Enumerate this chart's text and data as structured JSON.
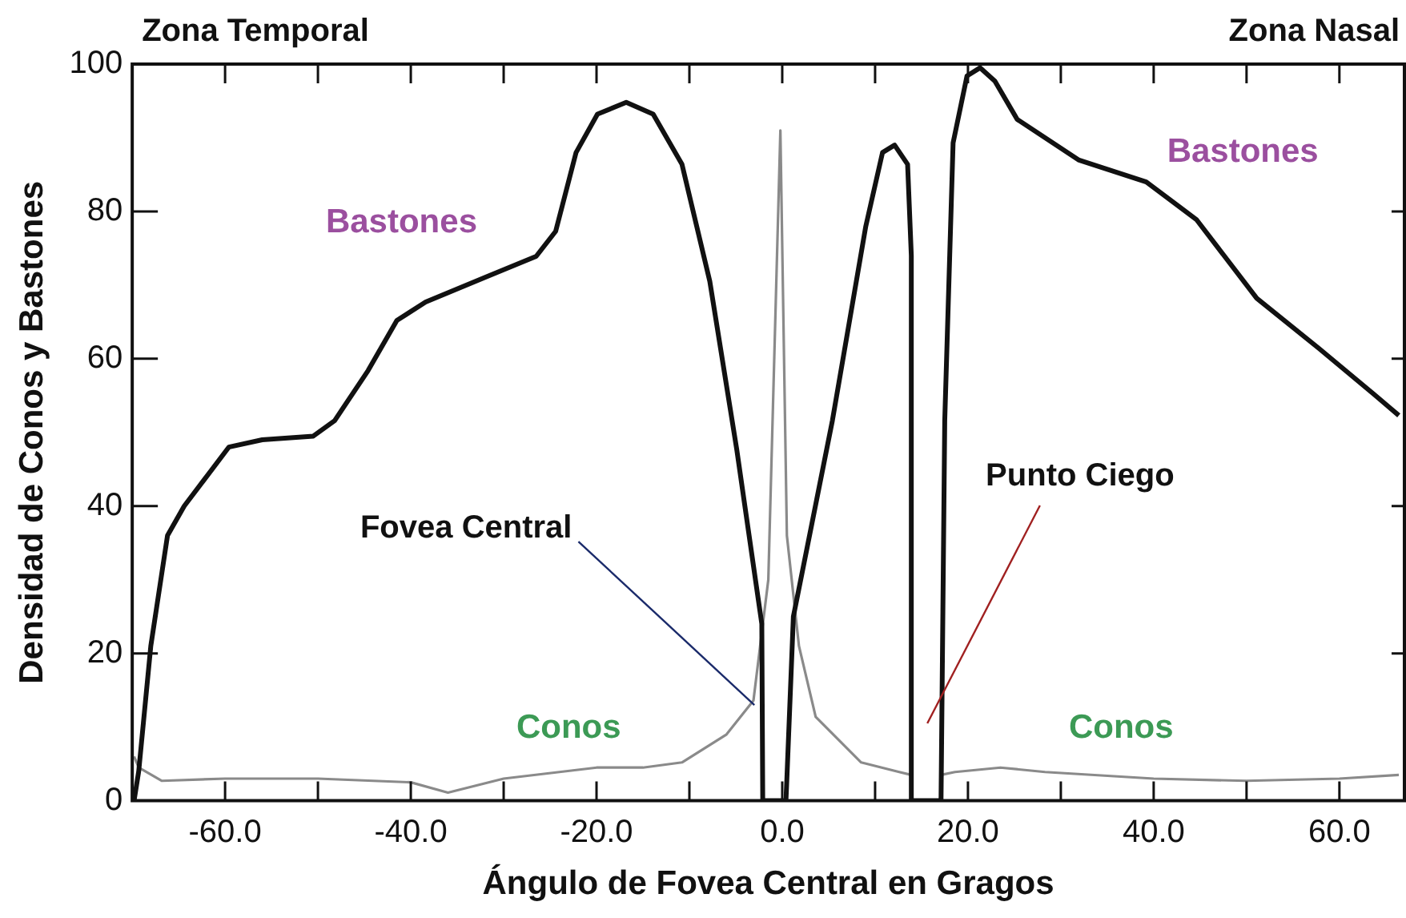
{
  "chart_data": {
    "type": "line",
    "xlabel": "Ángulo de Fovea Central en Gragos",
    "ylabel": "Densidad de Conos y Bastones",
    "xlim": [
      -70,
      67
    ],
    "ylim": [
      0,
      100
    ],
    "xticks": [
      {
        "value": -60,
        "label": "-60.0"
      },
      {
        "value": -50,
        "label": null
      },
      {
        "value": -40,
        "label": "-40.0"
      },
      {
        "value": -30,
        "label": null
      },
      {
        "value": -20,
        "label": "-20.0"
      },
      {
        "value": -10,
        "label": null
      },
      {
        "value": 0,
        "label": "0.0"
      },
      {
        "value": 10,
        "label": null
      },
      {
        "value": 20,
        "label": "20.0"
      },
      {
        "value": 30,
        "label": null
      },
      {
        "value": 40,
        "label": "40.0"
      },
      {
        "value": 50,
        "label": null
      },
      {
        "value": 60,
        "label": "60.0"
      }
    ],
    "yticks": [
      0,
      20,
      40,
      60,
      80,
      100
    ],
    "grid": false,
    "legend": false,
    "marker": "none",
    "line_style": "solid",
    "annotations": [
      "Zona Temporal",
      "Zona Nasal",
      {
        "text": "Fovea Central",
        "x": -3,
        "y": 13
      },
      "Punto Ciego"
    ],
    "series": [
      {
        "name": "Bastones",
        "color": "#111111",
        "x": [
          -69.8,
          -69.3,
          -68,
          -66.2,
          -64.4,
          -59.6,
          -56,
          -50.5,
          -48.2,
          -44.6,
          -41.5,
          -38.4,
          -31.9,
          -26.5,
          -24.4,
          -22.2,
          -19.9,
          -16.8,
          -13.9,
          -10.8,
          -7.8,
          -4.9,
          -2.2,
          -2.1,
          0.4,
          0.5,
          1.2,
          5.4,
          9,
          10.8,
          12.1,
          13.5,
          13.9,
          13.9,
          17.1,
          17.5,
          18.4,
          19.9,
          21.3,
          22.9,
          25.3,
          31.9,
          39.2,
          44.6,
          51.1,
          57.8,
          63.7,
          66.4
        ],
        "values": [
          0,
          4,
          21,
          36,
          40,
          48,
          49,
          49.5,
          51.6,
          58.4,
          65.2,
          67.7,
          71.1,
          73.9,
          77.3,
          88,
          93.2,
          94.8,
          93.2,
          86.4,
          70.5,
          47.7,
          24,
          0,
          0,
          3,
          25,
          51.6,
          78,
          88,
          89,
          86.4,
          74,
          0,
          0,
          51.6,
          89.3,
          98.4,
          99.5,
          97.7,
          92.5,
          87,
          84,
          78.9,
          68.2,
          61.4,
          55.2,
          52.3
        ]
      },
      {
        "name": "Conos",
        "color": "#8a8a8a",
        "x": [
          -69.8,
          -69.3,
          -66.8,
          -60,
          -50,
          -40,
          -36,
          -30,
          -20,
          -15,
          -10.8,
          -6,
          -3.1,
          -1.5,
          -0.2,
          0.5,
          1.8,
          3.6,
          8.5,
          12.6,
          13.9,
          13.9,
          17.1,
          17.1,
          18.6,
          23.5,
          28.3,
          40,
          50,
          60,
          66.4
        ],
        "values": [
          6,
          4.5,
          2.7,
          3,
          3,
          2.5,
          1.1,
          3,
          4.5,
          4.5,
          5.2,
          9,
          13.6,
          30,
          91,
          36,
          21,
          11.4,
          5.2,
          3.9,
          3.5,
          0,
          0,
          3.5,
          3.9,
          4.5,
          3.9,
          3,
          2.7,
          3,
          3.5
        ]
      }
    ]
  }
}
